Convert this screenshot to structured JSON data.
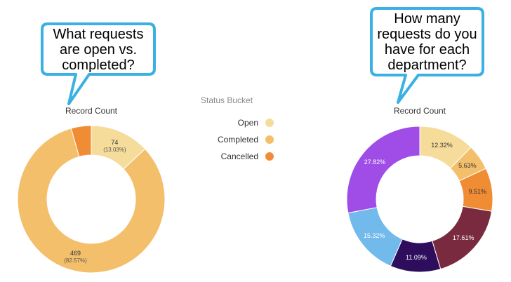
{
  "callouts": [
    {
      "text_lines": [
        "What requests",
        "are open vs.",
        "completed?"
      ]
    },
    {
      "text_lines": [
        "How many",
        "requests do you",
        "have for each",
        "department?"
      ]
    }
  ],
  "legend": {
    "title": "Status Bucket",
    "items": [
      {
        "label": "Open",
        "color": "#f5dc9a"
      },
      {
        "label": "Completed",
        "color": "#f4bf6b"
      },
      {
        "label": "Cancelled",
        "color": "#f08c34"
      }
    ]
  },
  "chart_data": [
    {
      "type": "pie",
      "donut": true,
      "title": "Record Count",
      "slices": [
        {
          "name": "Open",
          "value": 74,
          "percent": 13.03,
          "label": "74",
          "sublabel": "(13.03%)",
          "color": "#f5dc9a"
        },
        {
          "name": "Completed",
          "value": 469,
          "percent": 82.57,
          "label": "469",
          "sublabel": "(82.57%)",
          "color": "#f4bf6b"
        },
        {
          "name": "Cancelled",
          "value": 25,
          "percent": 4.4,
          "label": "",
          "sublabel": "",
          "color": "#f08c34"
        }
      ]
    },
    {
      "type": "pie",
      "donut": true,
      "title": "Record Count",
      "slices": [
        {
          "percent": 12.32,
          "label": "12.32%",
          "color": "#f5dc9a"
        },
        {
          "percent": 5.63,
          "label": "5.63%",
          "color": "#f4bf6b"
        },
        {
          "percent": 9.51,
          "label": "9.51%",
          "color": "#f08c34"
        },
        {
          "percent": 17.61,
          "label": "17.61%",
          "color": "#7a2a3f"
        },
        {
          "percent": 11.09,
          "label": "11.09%",
          "color": "#2e0d5c"
        },
        {
          "percent": 15.32,
          "label": "15.32%",
          "color": "#72b9ec"
        },
        {
          "percent": 27.82,
          "label": "27.82%",
          "color": "#9f4de6"
        }
      ]
    }
  ]
}
